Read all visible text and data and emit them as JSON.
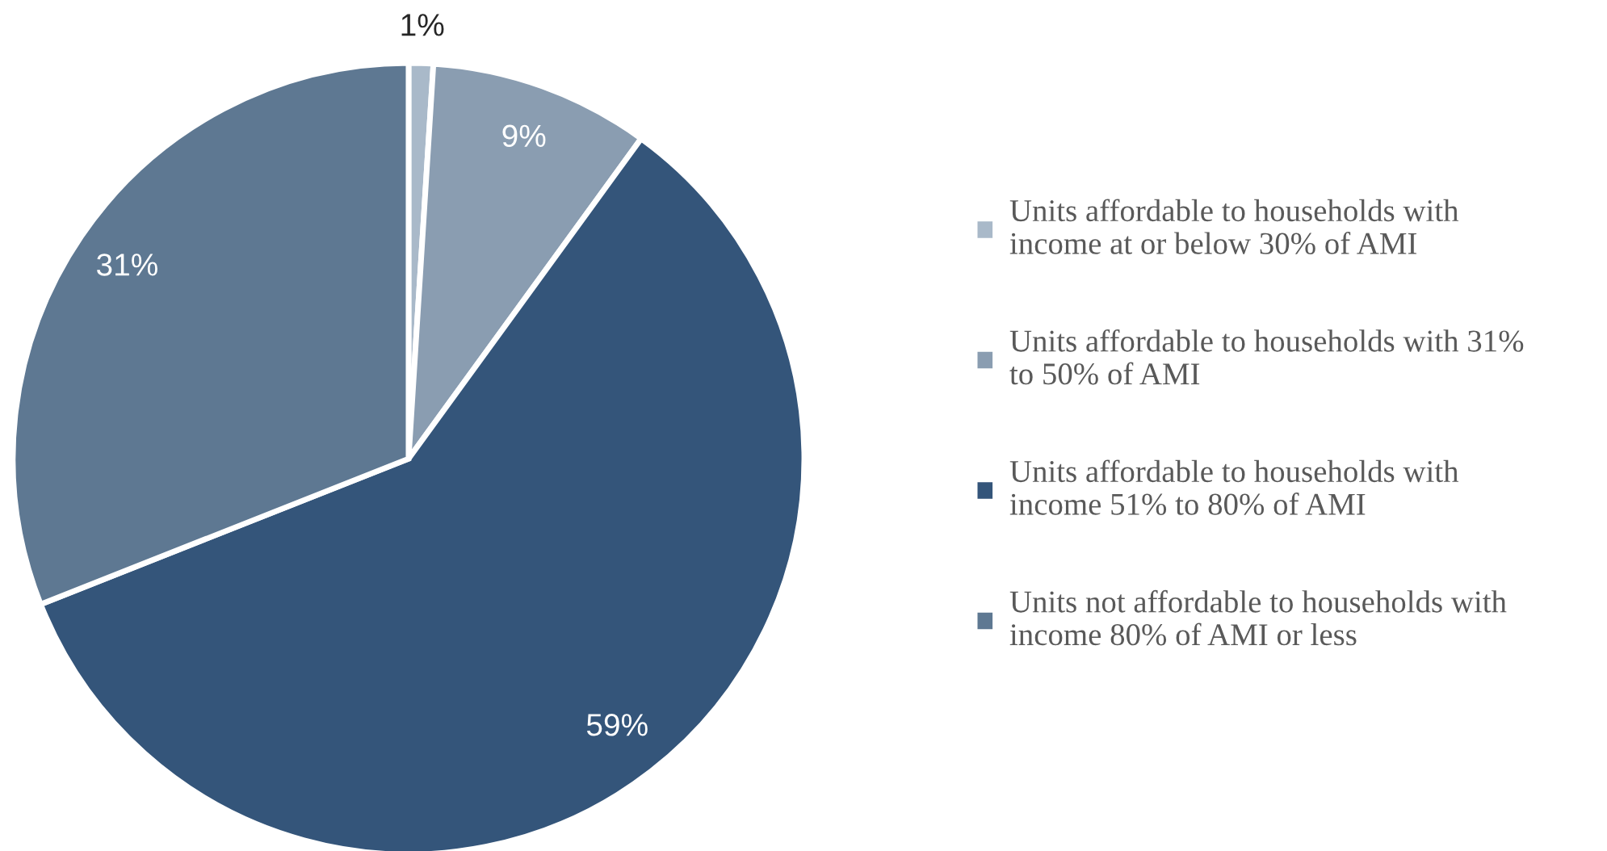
{
  "chart_data": {
    "type": "pie",
    "categories": [
      "Units affordable to households with income at or below 30% of AMI",
      "Units affordable to households with 31% to 50% of AMI",
      "Units affordable to households with income 51% to 80% of AMI",
      "Units not affordable to households with income 80% of AMI or less"
    ],
    "values": [
      1,
      9,
      59,
      31
    ],
    "colors": [
      "#a9b9c9",
      "#8a9db1",
      "#34557a",
      "#5e7892"
    ],
    "value_labels": [
      "1%",
      "9%",
      "59%",
      "31%"
    ],
    "legend": "right"
  }
}
